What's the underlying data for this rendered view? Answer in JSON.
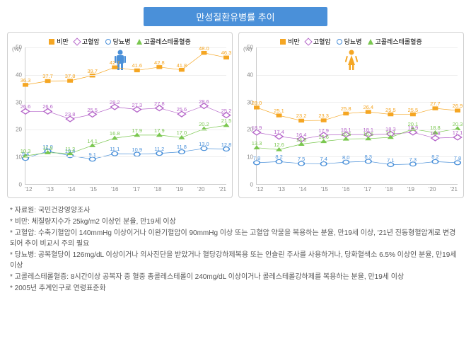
{
  "title": "만성질환유병률 추이",
  "unit_label": "(%)",
  "years": [
    "'12",
    "'13",
    "'14",
    "'15",
    "'16",
    "'17",
    "'18",
    "'19",
    "'20",
    "'21"
  ],
  "y_ticks": [
    0,
    10,
    20,
    30,
    40,
    50
  ],
  "ylim": [
    0,
    50
  ],
  "colors": {
    "obesity": "#f5a623",
    "hypertension": "#b565c9",
    "diabetes": "#4a90d9",
    "cholesterol": "#7ac74f",
    "grid": "#eeeeee",
    "axis": "#cccccc",
    "male_icon": "#4a90d9",
    "female_icon": "#f5a623"
  },
  "legend": {
    "obesity": "비만",
    "hypertension": "고혈압",
    "diabetes": "당뇨병",
    "cholesterol": "고콜레스테롤혈증"
  },
  "male": {
    "obesity": [
      36.3,
      37.7,
      37.8,
      39.7,
      42.7,
      41.6,
      42.8,
      41.8,
      48.0,
      46.3
    ],
    "hypertension": [
      26.6,
      26.6,
      23.8,
      25.5,
      28.2,
      27.3,
      27.8,
      25.6,
      28.6,
      25.2
    ],
    "cholesterol": [
      10.3,
      11.5,
      11.2,
      14.1,
      16.8,
      17.9,
      17.9,
      17.0,
      20.2,
      21.5
    ],
    "diabetes": [
      9.4,
      12.0,
      10.4,
      9.1,
      11.1,
      10.9,
      11.2,
      11.8,
      13.0,
      12.8
    ]
  },
  "female": {
    "obesity": [
      28.0,
      25.1,
      23.2,
      23.3,
      25.8,
      26.4,
      25.5,
      25.5,
      27.7,
      26.9
    ],
    "hypertension": [
      18.9,
      17.4,
      16.4,
      17.9,
      18.1,
      18.1,
      18.3,
      18.9,
      16.8,
      17.1
    ],
    "cholesterol": [
      13.3,
      12.6,
      14.6,
      15.6,
      16.5,
      16.6,
      17.1,
      20.1,
      18.8,
      20.3
    ],
    "diabetes": [
      7.8,
      8.2,
      7.5,
      7.4,
      8.0,
      8.3,
      7.1,
      7.3,
      8.2,
      7.8
    ]
  },
  "notes": [
    "* 자료원: 국민건강영양조사",
    "* 비만: 체질량지수가 25kg/m2 이상인 분율, 만19세 이상",
    "* 고혈압: 수축기혈압이 140mmHg 이상이거나 이완기혈압이 90mmHg 이상 또는 고혈압 약물을 복용하는 분율, 만19세 이상, '21년 진동형혈압계로 변경되어 추이 비교시 주의 필요",
    "* 당뇨병: 공복혈당이 126mg/dL 이상이거나 의사진단을 받았거나 혈당강하제복용 또는 인슐린 주사를 사용하거나, 당화혈색소 6.5% 이상인 분율, 만19세 이상",
    "* 고콜레스테롤혈증: 8시간이상 공복자 중 혈중 총콜레스테롤이 240mg/dL 이상이거나 콜레스테롤강하제를 복용하는 분율, 만19세 이상",
    "* 2005년 추계인구로 연령표준화"
  ]
}
